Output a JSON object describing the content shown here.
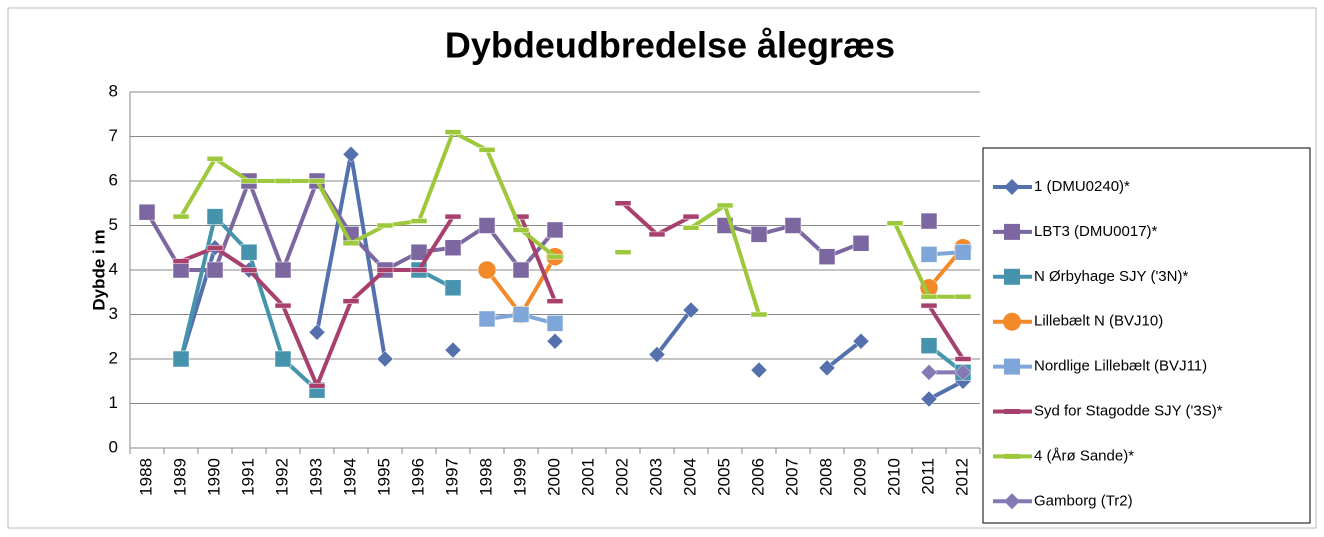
{
  "chart_data": {
    "type": "line",
    "title": "Dybdeudbredelse ålegræs",
    "y_label": "Dybde i m",
    "categories": [
      "1988",
      "1989",
      "1990",
      "1991",
      "1992",
      "1993",
      "1994",
      "1995",
      "1996",
      "1997",
      "1998",
      "1999",
      "2000",
      "2001",
      "2002",
      "2003",
      "2004",
      "2005",
      "2006",
      "2007",
      "2008",
      "2009",
      "2010",
      "2011",
      "2012"
    ],
    "ylim": [
      0,
      8
    ],
    "yticks": [
      0,
      1,
      2,
      3,
      4,
      5,
      6,
      7,
      8
    ],
    "grid": true,
    "legend": "right",
    "series": [
      {
        "name": "1 (DMU0240)*",
        "color": "#5470ad",
        "marker": "diamond",
        "values": [
          null,
          2,
          4.5,
          4.0,
          null,
          2.6,
          6.6,
          2.0,
          null,
          2.2,
          null,
          null,
          2.4,
          null,
          null,
          2.1,
          3.1,
          null,
          1.75,
          null,
          1.8,
          2.4,
          null,
          1.1,
          1.5
        ]
      },
      {
        "name": "LBT3 (DMU0017)*",
        "color": "#7d67a0",
        "marker": "square",
        "values": [
          5.3,
          4.0,
          4.0,
          6.0,
          4.0,
          6.0,
          4.8,
          4.0,
          4.4,
          4.5,
          5.0,
          4.0,
          4.9,
          null,
          null,
          null,
          null,
          5.0,
          4.8,
          5.0,
          4.3,
          4.6,
          null,
          5.1,
          null
        ]
      },
      {
        "name": "N Ørbyhage SJY ('3N)*",
        "color": "#4593ad",
        "marker": "square",
        "values": [
          null,
          2.0,
          5.2,
          4.4,
          2.0,
          1.3,
          null,
          null,
          4.0,
          3.6,
          null,
          null,
          null,
          null,
          null,
          null,
          null,
          null,
          null,
          null,
          null,
          null,
          null,
          2.3,
          1.7
        ]
      },
      {
        "name": " Lillebælt N (BVJ10)",
        "color": "#f28a2a",
        "marker": "circle",
        "values": [
          null,
          null,
          null,
          null,
          null,
          null,
          null,
          null,
          null,
          null,
          4.0,
          3.0,
          4.3,
          null,
          null,
          null,
          null,
          null,
          null,
          null,
          null,
          null,
          null,
          3.6,
          4.5
        ]
      },
      {
        "name": "Nordlige Lillebælt (BVJ11)",
        "color": "#7fa6d8",
        "marker": "square",
        "values": [
          null,
          null,
          null,
          null,
          null,
          null,
          null,
          null,
          null,
          null,
          2.9,
          3.0,
          2.8,
          null,
          null,
          null,
          null,
          null,
          null,
          null,
          null,
          null,
          null,
          4.35,
          4.4
        ]
      },
      {
        "name": "Syd for Stagodde SJY ('3S)*",
        "color": "#a8406e",
        "marker": "dash",
        "values": [
          null,
          4.2,
          4.5,
          4.0,
          3.2,
          1.4,
          3.3,
          4.0,
          4.0,
          5.2,
          null,
          5.2,
          3.3,
          null,
          5.5,
          4.8,
          5.2,
          null,
          null,
          null,
          null,
          null,
          null,
          3.2,
          2.0
        ]
      },
      {
        "name": "4 (Årø Sande)*",
        "color": "#9dc83b",
        "marker": "dash",
        "values": [
          null,
          5.2,
          6.5,
          6.0,
          6.0,
          6.0,
          4.6,
          5.0,
          5.1,
          7.1,
          6.7,
          4.9,
          4.3,
          null,
          4.4,
          null,
          4.95,
          5.45,
          3.0,
          null,
          null,
          null,
          5.05,
          3.4,
          3.4
        ]
      },
      {
        "name": "Gamborg (Tr2)",
        "color": "#8579b4",
        "marker": "diamond",
        "values": [
          null,
          null,
          null,
          null,
          null,
          null,
          null,
          null,
          null,
          null,
          null,
          null,
          null,
          null,
          null,
          null,
          null,
          null,
          null,
          null,
          null,
          null,
          null,
          1.7,
          1.7
        ]
      }
    ]
  }
}
